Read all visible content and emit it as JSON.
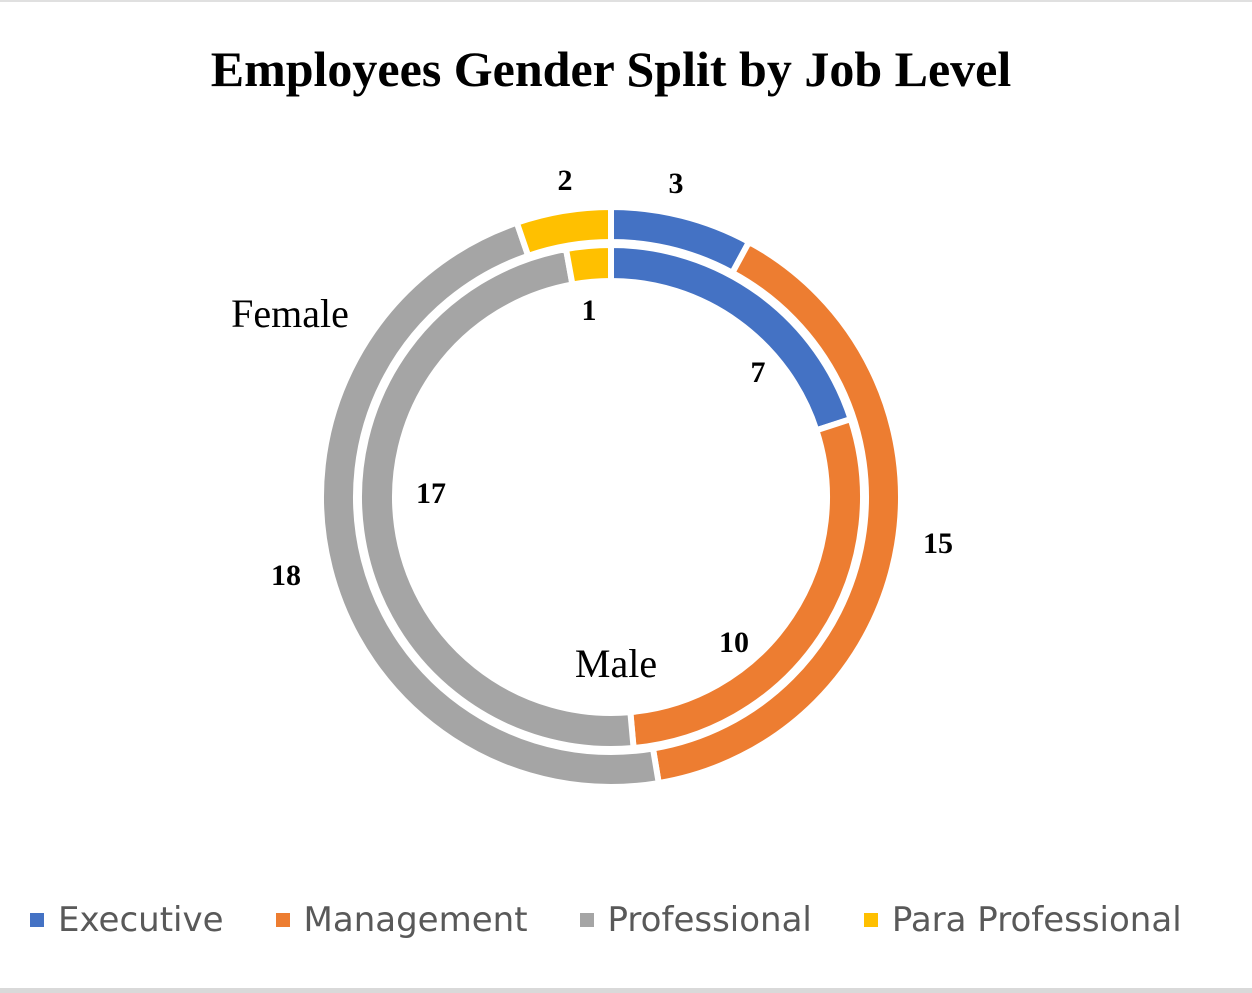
{
  "chart_data": {
    "type": "doughnut",
    "title": "Employees Gender Split by Job Level",
    "categories": [
      "Executive",
      "Management",
      "Professional",
      "Para Professional"
    ],
    "colors": [
      "#4472C4",
      "#ED7D31",
      "#A5A5A5",
      "#FFC000"
    ],
    "series": [
      {
        "name": "Male",
        "ring": "inner",
        "values": [
          7,
          10,
          17,
          1
        ]
      },
      {
        "name": "Female",
        "ring": "outer",
        "values": [
          3,
          15,
          18,
          2
        ]
      }
    ],
    "legend_position": "bottom",
    "series_labels": {
      "male": "Male",
      "female": "Female"
    },
    "data_labels": {
      "outer": [
        "3",
        "15",
        "18",
        "2"
      ],
      "inner": [
        "7",
        "10",
        "17",
        "1"
      ]
    }
  },
  "legend": [
    {
      "label": "Executive",
      "color": "#4472C4"
    },
    {
      "label": "Management",
      "color": "#ED7D31"
    },
    {
      "label": "Professional",
      "color": "#A5A5A5"
    },
    {
      "label": "Para Professional",
      "color": "#FFC000"
    }
  ]
}
